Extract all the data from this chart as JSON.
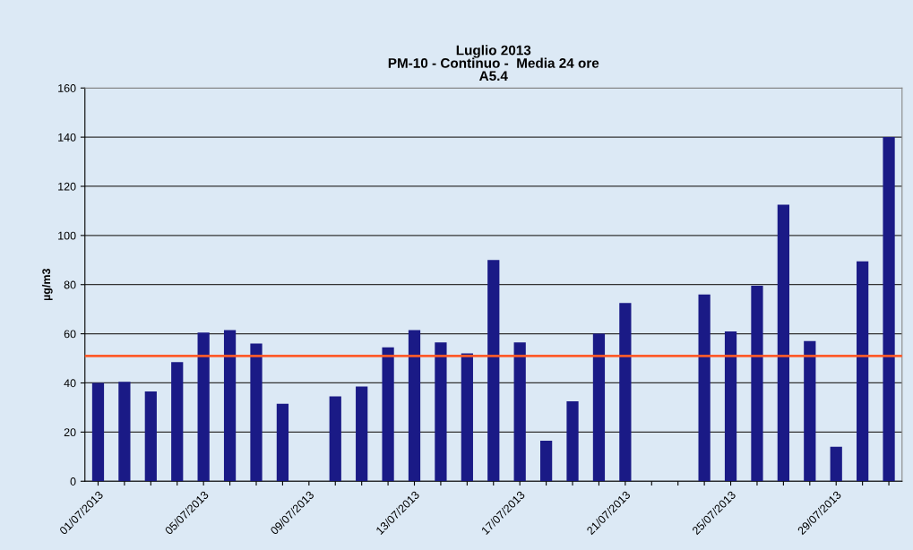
{
  "chart_data": {
    "type": "bar",
    "title": "Luglio 2013\nPM-10 - Continuo -  Media 24 ore\nA5.4",
    "ylabel": "µg/m3",
    "categories": [
      "01/07/2013",
      null,
      null,
      null,
      "05/07/2013",
      null,
      null,
      null,
      "09/07/2013",
      null,
      null,
      null,
      "13/07/2013",
      null,
      null,
      null,
      "17/07/2013",
      null,
      null,
      null,
      "21/07/2013",
      null,
      null,
      null,
      "25/07/2013",
      null,
      null,
      null,
      "29/07/2013",
      null,
      null
    ],
    "values": [
      40,
      40.5,
      36.5,
      48.5,
      60.5,
      61.5,
      56,
      31.5,
      null,
      34.5,
      38.5,
      54.5,
      61.5,
      56.5,
      52,
      90,
      56.5,
      16.5,
      32.5,
      60,
      72.5,
      null,
      null,
      76,
      61,
      79.5,
      112.5,
      57,
      14,
      89.5,
      140
    ],
    "color": "#1a1a86",
    "ylim": [
      0,
      160
    ],
    "yticks": [
      0,
      20,
      40,
      60,
      80,
      100,
      120,
      140,
      160
    ],
    "grid": "y",
    "ref_lines": [
      {
        "axis": "y",
        "value": 51,
        "color": "#ff5a2a"
      }
    ]
  }
}
